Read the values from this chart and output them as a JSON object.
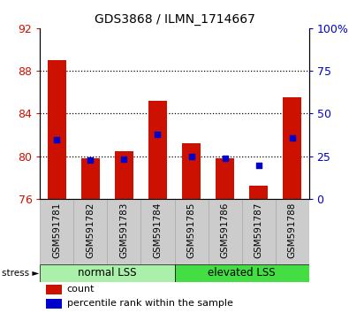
{
  "title": "GDS3868 / ILMN_1714667",
  "samples": [
    "GSM591781",
    "GSM591782",
    "GSM591783",
    "GSM591784",
    "GSM591785",
    "GSM591786",
    "GSM591787",
    "GSM591788"
  ],
  "bar_base": 76,
  "red_tops": [
    89.0,
    79.8,
    80.5,
    85.2,
    81.2,
    79.8,
    77.2,
    85.5
  ],
  "blue_values_left": [
    81.5,
    79.65,
    79.75,
    82.0,
    80.0,
    79.8,
    79.1,
    81.7
  ],
  "ylim_left": [
    76,
    92
  ],
  "ylim_right": [
    0,
    100
  ],
  "yticks_left": [
    76,
    80,
    84,
    88,
    92
  ],
  "yticks_right": [
    0,
    25,
    50,
    75,
    100
  ],
  "group1_label": "normal LSS",
  "group2_label": "elevated LSS",
  "group1_color": "#aaf0aa",
  "group2_color": "#44dd44",
  "bar_color": "#cc1100",
  "blue_color": "#0000cc",
  "bar_width": 0.55,
  "legend_count": "count",
  "legend_pct": "percentile rank within the sample",
  "tick_color_left": "#cc1100",
  "tick_color_right": "#0000cc",
  "gray_box_color": "#cccccc",
  "gray_box_edge": "#aaaaaa"
}
